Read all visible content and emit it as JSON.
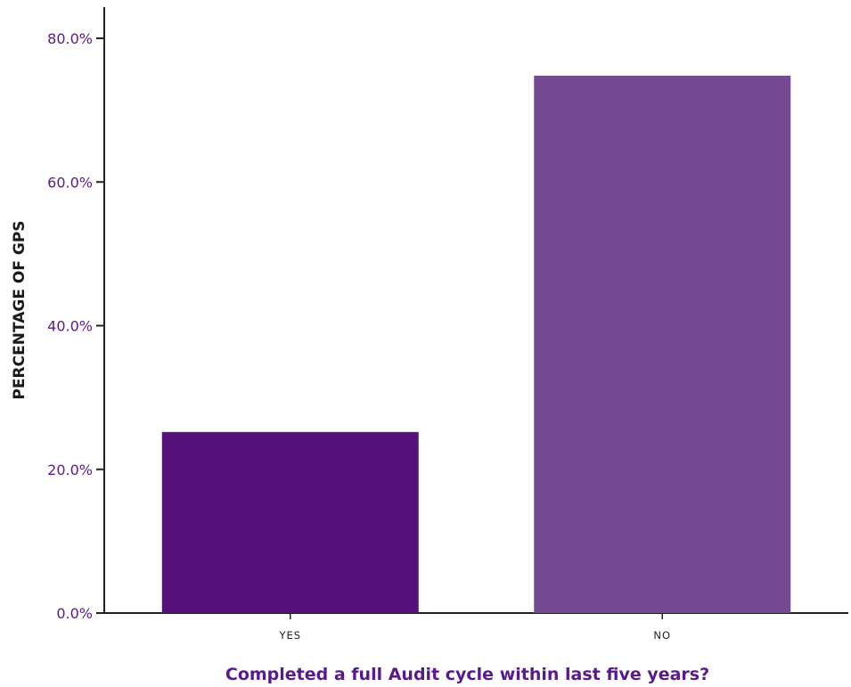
{
  "colors": {
    "text_accent": "#5a1a8a",
    "axis": "#222222"
  },
  "chart_data": {
    "type": "bar",
    "categories": [
      "YES",
      "NO"
    ],
    "values": [
      25.2,
      74.8
    ],
    "bar_colors": [
      "#55127a",
      "#754a93"
    ],
    "xlabel": "Completed a full Audit cycle within last five years?",
    "ylabel": "PERCENTAGE OF GPS",
    "ylim": [
      0,
      80
    ],
    "yticks": [
      0,
      20,
      40,
      60,
      80
    ],
    "ytick_labels": [
      "0.0%",
      "20.0%",
      "40.0%",
      "60.0%",
      "80.0%"
    ],
    "grid": false,
    "legend": "none"
  }
}
